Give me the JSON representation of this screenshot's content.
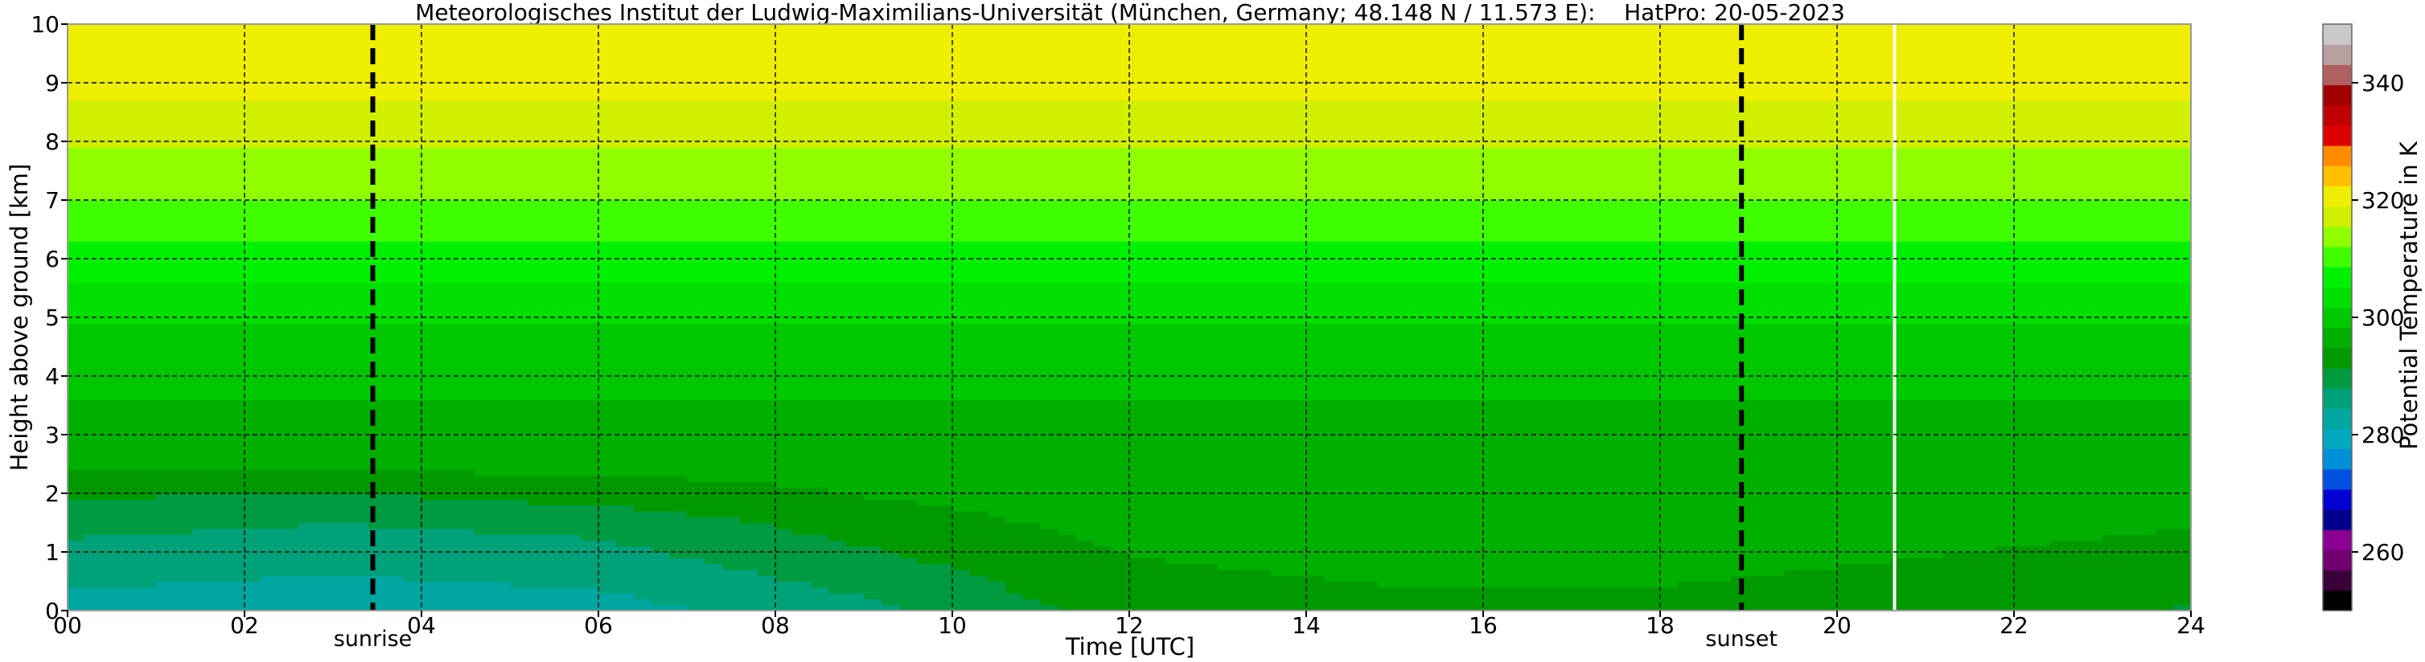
{
  "chart_data": {
    "type": "heatmap",
    "title": "Meteorologisches Institut der Ludwig-Maximilians-Universität (München, Germany; 48.148 N / 11.573 E):    HatPro: 20-05-2023",
    "xlabel": "Time [UTC]",
    "ylabel": "Height above ground [km]",
    "xlim": [
      0,
      24
    ],
    "ylim": [
      0,
      10
    ],
    "x_ticks": [
      "00",
      "02",
      "04",
      "06",
      "08",
      "10",
      "12",
      "14",
      "16",
      "18",
      "20",
      "22",
      "24"
    ],
    "y_ticks": [
      "0",
      "1",
      "2",
      "3",
      "4",
      "5",
      "6",
      "7",
      "8",
      "9",
      "10"
    ],
    "grid": true,
    "colorbar": {
      "label": "Potential Temperature in K",
      "range": [
        250,
        350
      ],
      "ticks": [
        "260",
        "280",
        "300",
        "320",
        "340"
      ],
      "colors": [
        "#000000",
        "#3a003a",
        "#6e0070",
        "#8a0090",
        "#00008c",
        "#0000d0",
        "#0050e0",
        "#0090d8",
        "#00a8c0",
        "#00a6a0",
        "#00a27a",
        "#009a40",
        "#009a00",
        "#00b000",
        "#00c800",
        "#00e000",
        "#00f000",
        "#40ff00",
        "#90ff00",
        "#d0f000",
        "#eeee00",
        "#ffc000",
        "#ff8c00",
        "#dd0000",
        "#c00000",
        "#a00000",
        "#b06060",
        "#b8a0a0",
        "#c8c8c8"
      ]
    },
    "events": [
      {
        "label": "sunrise",
        "time": 3.45
      },
      {
        "label": "sunset",
        "time": 18.92
      }
    ],
    "data_gap_time": 20.65,
    "heights": [
      0,
      0.5,
      1,
      1.5,
      2,
      2.5,
      3,
      4,
      5,
      6,
      7,
      8,
      9,
      10
    ],
    "series": [
      {
        "time": 0,
        "theta": [
          283,
          285,
          287,
          289,
          292,
          296,
          297,
          299,
          302,
          307,
          312,
          316,
          320,
          322
        ]
      },
      {
        "time": 3,
        "theta": [
          282,
          284,
          286,
          288,
          291,
          296,
          297,
          299,
          302,
          307,
          312,
          316,
          320,
          322
        ]
      },
      {
        "time": 6,
        "theta": [
          283,
          285,
          287,
          289,
          293,
          296,
          297,
          299,
          302,
          307,
          312,
          316,
          320,
          322
        ]
      },
      {
        "time": 9,
        "theta": [
          287,
          289,
          291,
          293,
          295,
          296,
          297,
          299,
          302,
          307,
          312,
          316,
          320,
          322
        ]
      },
      {
        "time": 12,
        "theta": [
          293,
          294,
          295,
          296,
          297,
          297,
          297,
          299,
          302,
          307,
          312,
          316,
          320,
          322
        ]
      },
      {
        "time": 15,
        "theta": [
          294,
          295,
          296,
          296,
          297,
          297,
          297,
          299,
          302,
          307,
          312,
          316,
          320,
          322
        ]
      },
      {
        "time": 18,
        "theta": [
          294,
          295,
          296,
          296,
          297,
          297,
          297,
          299,
          302,
          307,
          312,
          316,
          320,
          322
        ]
      },
      {
        "time": 21,
        "theta": [
          293,
          294,
          295,
          296,
          297,
          297,
          297,
          299,
          302,
          307,
          312,
          316,
          320,
          322
        ]
      },
      {
        "time": 24,
        "theta": [
          291,
          293,
          294,
          295,
          296,
          297,
          297,
          299,
          302,
          307,
          312,
          316,
          320,
          322
        ]
      }
    ]
  }
}
